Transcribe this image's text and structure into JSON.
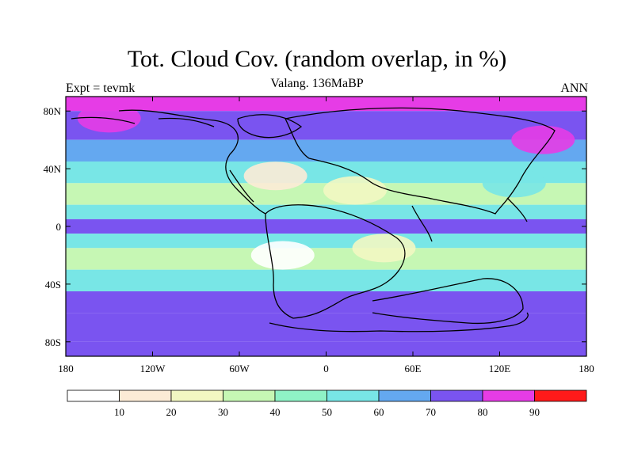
{
  "title": "Tot. Cloud Cov. (random overlap, in %)",
  "subtitle": "Valang. 136MaBP",
  "left_label": "Expt = tevmk",
  "right_label": "ANN",
  "axes": {
    "lat_ticks": [
      "80N",
      "40N",
      "0",
      "40S",
      "80S"
    ],
    "lon_ticks": [
      "180",
      "120W",
      "60W",
      "0",
      "60E",
      "120E",
      "180"
    ]
  },
  "colorbar": {
    "labels": [
      "10",
      "20",
      "30",
      "40",
      "50",
      "60",
      "70",
      "80",
      "90"
    ],
    "colors": [
      "#ffffff",
      "#fcebd6",
      "#f2f7c2",
      "#c6f7b4",
      "#8ff2c6",
      "#78e6e6",
      "#64a8f0",
      "#7a54f0",
      "#e63ce6",
      "#ff1a1a"
    ]
  },
  "chart_data": {
    "type": "heatmap",
    "title": "Tot. Cloud Cov. (random overlap, in %)",
    "subtitle": "Valang. 136MaBP",
    "experiment": "Expt = tevmk",
    "period": "ANN",
    "x_range": [
      -180,
      180
    ],
    "y_range": [
      -90,
      90
    ],
    "levels": [
      10,
      20,
      30,
      40,
      50,
      60,
      70,
      80,
      90
    ],
    "zonal_bands": [
      {
        "lat_range": [
          80,
          90
        ],
        "value": 85
      },
      {
        "lat_range": [
          60,
          80
        ],
        "value": 75
      },
      {
        "lat_range": [
          45,
          60
        ],
        "value": 65
      },
      {
        "lat_range": [
          30,
          45
        ],
        "value": 50
      },
      {
        "lat_range": [
          15,
          30
        ],
        "value": 35
      },
      {
        "lat_range": [
          5,
          15
        ],
        "value": 50
      },
      {
        "lat_range": [
          -5,
          5
        ],
        "value": 70
      },
      {
        "lat_range": [
          -15,
          -5
        ],
        "value": 55
      },
      {
        "lat_range": [
          -30,
          -15
        ],
        "value": 35
      },
      {
        "lat_range": [
          -45,
          -30
        ],
        "value": 55
      },
      {
        "lat_range": [
          -60,
          -45
        ],
        "value": 72
      },
      {
        "lat_range": [
          -80,
          -60
        ],
        "value": 78
      },
      {
        "lat_range": [
          -90,
          -80
        ],
        "value": 70
      }
    ],
    "features": [
      {
        "lon": -35,
        "lat": 35,
        "value": 15
      },
      {
        "lon": -30,
        "lat": -20,
        "value": 8
      },
      {
        "lon": 20,
        "lat": 25,
        "value": 25
      },
      {
        "lon": 40,
        "lat": -15,
        "value": 25
      },
      {
        "lon": -150,
        "lat": 75,
        "value": 88
      },
      {
        "lon": 150,
        "lat": 60,
        "value": 82
      },
      {
        "lon": 130,
        "lat": 30,
        "value": 55
      }
    ]
  }
}
